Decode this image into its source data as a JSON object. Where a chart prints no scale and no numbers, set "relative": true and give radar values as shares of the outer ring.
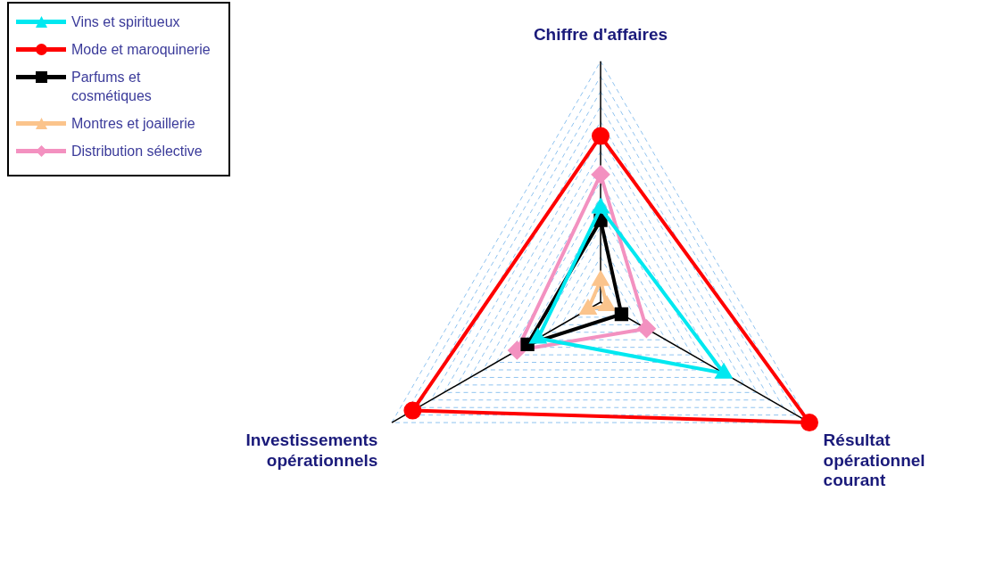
{
  "chart_data": {
    "type": "radar",
    "relative": true,
    "grid": true,
    "legend": "top left",
    "line_style": "solid",
    "categories": [
      "Chiffre d'affaires",
      "Résultat opérationnel courant",
      "Investissements opérationnels"
    ],
    "series": [
      {
        "name": "Vins et spiritueux",
        "color": "#00e8f0",
        "marker": "triangle",
        "values": [
          0.39,
          0.59,
          0.3
        ]
      },
      {
        "name": "Mode et maroquinerie",
        "color": "#ff0000",
        "marker": "circle",
        "values": [
          0.69,
          1.0,
          0.9
        ]
      },
      {
        "name": "Parfums et cosmétiques",
        "color": "#000000",
        "marker": "square",
        "values": [
          0.34,
          0.1,
          0.35
        ]
      },
      {
        "name": "Montres et joaillerie",
        "color": "#fbc48c",
        "marker": "triangle",
        "values": [
          0.09,
          0.03,
          0.06
        ]
      },
      {
        "name": "Distribution sélective",
        "color": "#f391c0",
        "marker": "diamond",
        "values": [
          0.53,
          0.22,
          0.4
        ]
      }
    ]
  }
}
